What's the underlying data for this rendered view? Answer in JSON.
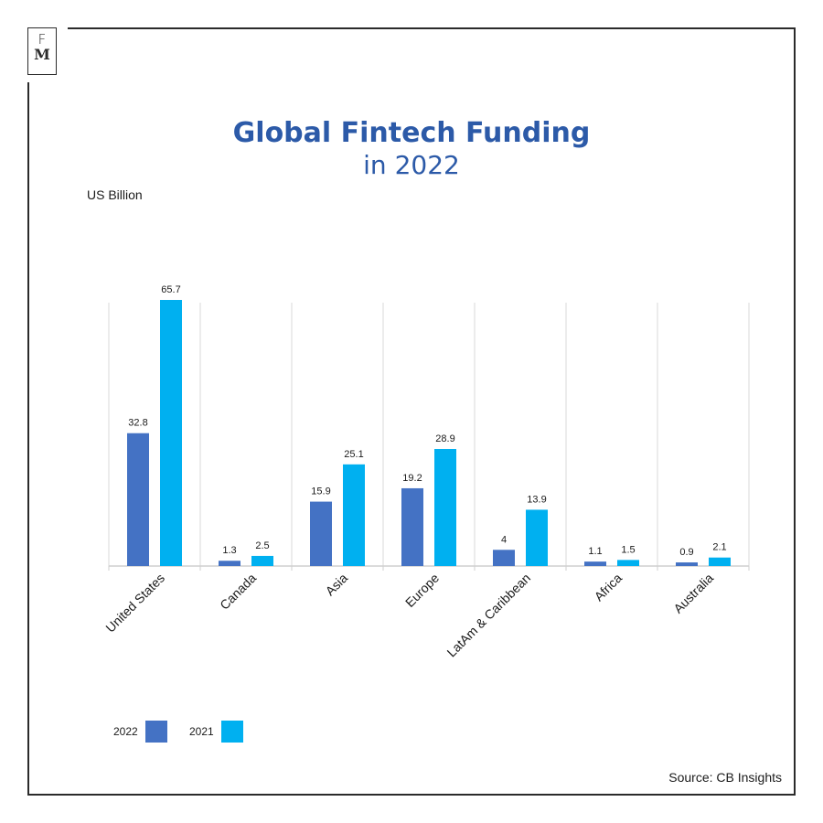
{
  "logo": {
    "line1": "F",
    "line2": "M"
  },
  "chart_data": {
    "type": "bar",
    "title": "Global Fintech Funding",
    "subtitle": "in 2022",
    "ylabel": "US Billion",
    "categories": [
      "United States",
      "Canada",
      "Asia",
      "Europe",
      "LatAm & Caribbean",
      "Africa",
      "Australia"
    ],
    "series": [
      {
        "name": "2022",
        "color": "#4472c4",
        "values": [
          32.8,
          1.3,
          15.9,
          19.2,
          4,
          1.1,
          0.9
        ]
      },
      {
        "name": "2021",
        "color": "#00b0f0",
        "values": [
          65.7,
          2.5,
          25.1,
          28.9,
          13.9,
          1.5,
          2.1
        ]
      }
    ],
    "data_labels": [
      [
        "32.8",
        "1.3",
        "15.9",
        "19.2",
        "4",
        "1.1",
        "0.9"
      ],
      [
        "65.7",
        "2.5",
        "25.1",
        "28.9",
        "13.9",
        "1.5",
        "2.1"
      ]
    ],
    "ylim": [
      0,
      65.7
    ],
    "grid": "vertical",
    "legend": "bottom-left"
  },
  "source": "Source: CB Insights"
}
